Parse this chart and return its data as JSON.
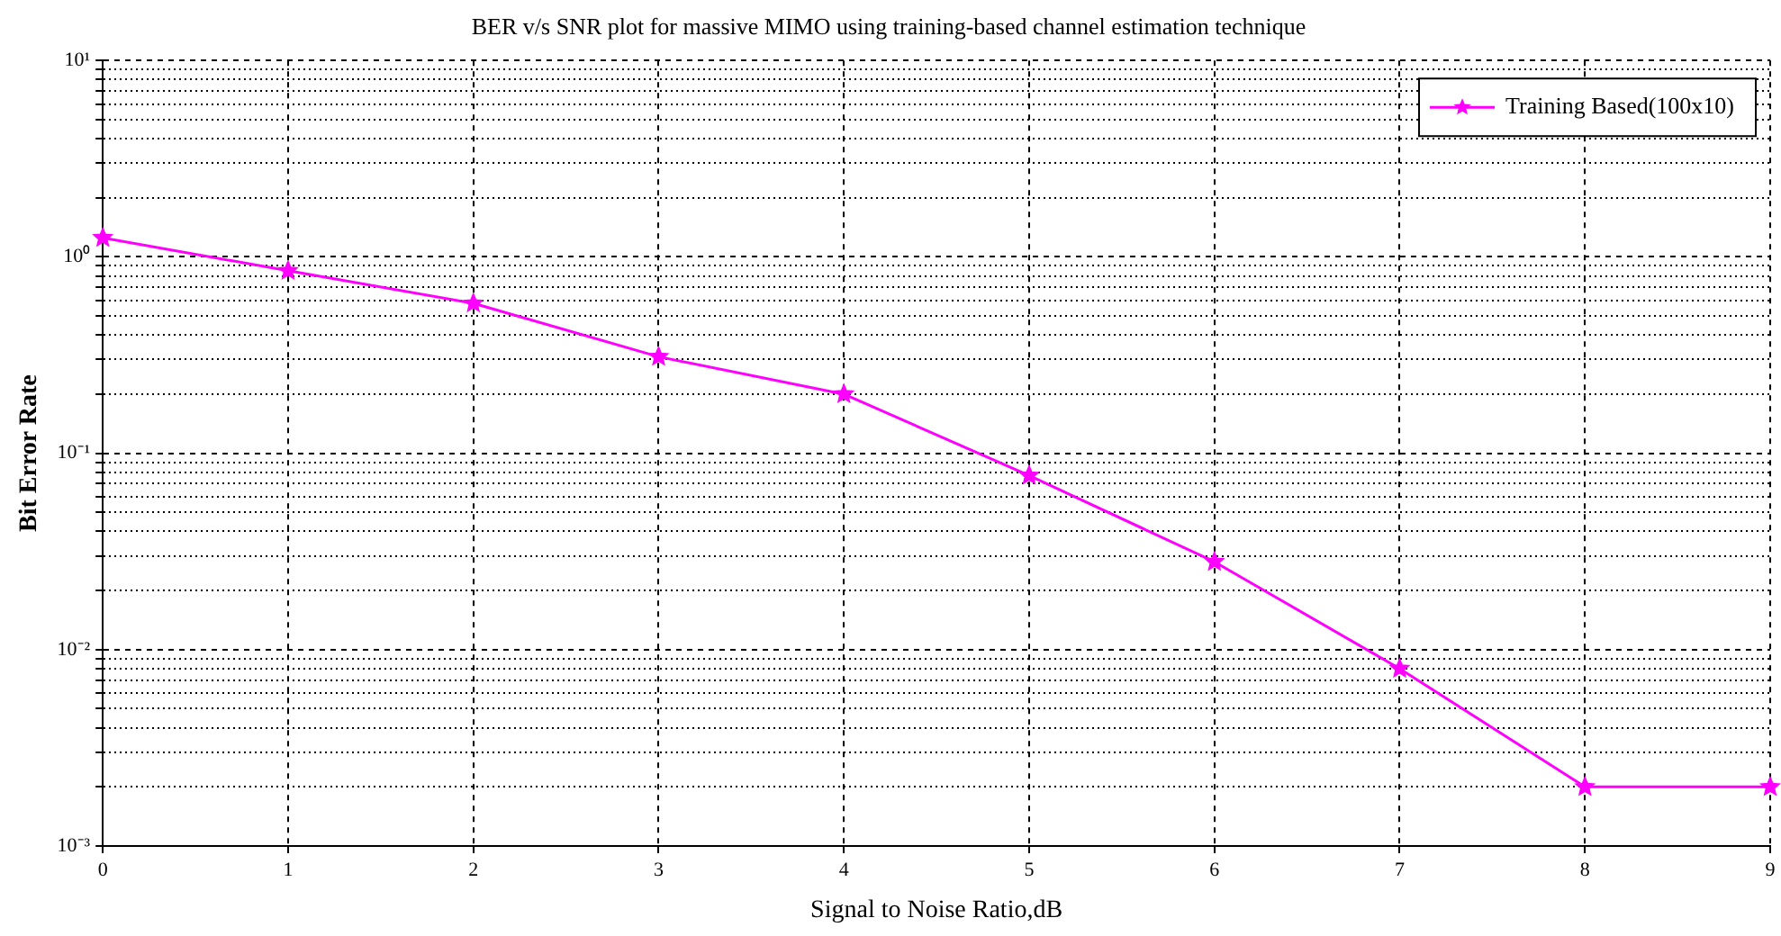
{
  "chart_data": {
    "type": "line",
    "title": "BER v/s SNR plot for massive MIMO using training-based channel estimation technique",
    "xlabel": "Signal to Noise Ratio,dB",
    "ylabel": "Bit Error Rate",
    "x": [
      0,
      1,
      2,
      3,
      4,
      5,
      6,
      7,
      8,
      9
    ],
    "series": [
      {
        "name": "Training Based(100x10)",
        "color": "#ff00ff",
        "values": [
          1.25,
          0.85,
          0.58,
          0.31,
          0.2,
          0.077,
          0.028,
          0.008,
          0.002,
          0.002
        ]
      }
    ],
    "log": "y",
    "xlim": [
      0,
      9
    ],
    "xticks": [
      0,
      1,
      2,
      3,
      4,
      5,
      6,
      7,
      8,
      9
    ],
    "ylim": [
      0.001,
      10
    ],
    "yticks": [
      {
        "value": 0.001,
        "label": "10⁻³"
      },
      {
        "value": 0.002,
        "label": null
      },
      {
        "value": 0.003,
        "label": null
      },
      {
        "value": 0.004,
        "label": null
      },
      {
        "value": 0.005,
        "label": null
      },
      {
        "value": 0.006,
        "label": null
      },
      {
        "value": 0.007,
        "label": null
      },
      {
        "value": 0.008,
        "label": null
      },
      {
        "value": 0.009,
        "label": null
      },
      {
        "value": 0.01,
        "label": "10⁻²"
      },
      {
        "value": 0.02,
        "label": null
      },
      {
        "value": 0.03,
        "label": null
      },
      {
        "value": 0.04,
        "label": null
      },
      {
        "value": 0.05,
        "label": null
      },
      {
        "value": 0.06,
        "label": null
      },
      {
        "value": 0.07,
        "label": null
      },
      {
        "value": 0.08,
        "label": null
      },
      {
        "value": 0.09,
        "label": null
      },
      {
        "value": 0.1,
        "label": "10⁻¹"
      },
      {
        "value": 0.2,
        "label": null
      },
      {
        "value": 0.3,
        "label": null
      },
      {
        "value": 0.4,
        "label": null
      },
      {
        "value": 0.5,
        "label": null
      },
      {
        "value": 0.6,
        "label": null
      },
      {
        "value": 0.7,
        "label": null
      },
      {
        "value": 0.8,
        "label": null
      },
      {
        "value": 0.9,
        "label": null
      },
      {
        "value": 1,
        "label": "10⁰"
      },
      {
        "value": 2,
        "label": null
      },
      {
        "value": 3,
        "label": null
      },
      {
        "value": 4,
        "label": null
      },
      {
        "value": 5,
        "label": null
      },
      {
        "value": 6,
        "label": null
      },
      {
        "value": 7,
        "label": null
      },
      {
        "value": 8,
        "label": null
      },
      {
        "value": 9,
        "label": null
      },
      {
        "value": 10,
        "label": "10¹"
      }
    ],
    "grid": true,
    "legend": "top right",
    "marker": "star",
    "line_style": "solid"
  }
}
